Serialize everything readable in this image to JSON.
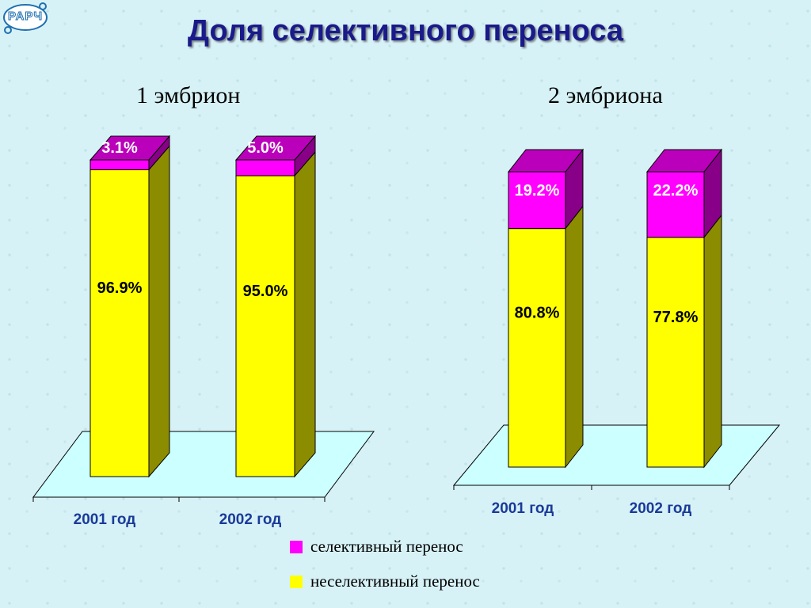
{
  "header": {
    "logo_text": "РАРЧ",
    "title": "Доля селективного переноса"
  },
  "colors": {
    "selective": "#ff00ff",
    "selective_top": "#bb00bb",
    "selective_side": "#880088",
    "nonselective": "#ffff00",
    "nonselective_side": "#8c8c00",
    "floor": "#ccffff",
    "category_text": "#1a3a9a"
  },
  "chart_data": [
    {
      "type": "bar",
      "stacked": true,
      "title": "1 эмбрион",
      "categories": [
        "2001 год",
        "2002 год"
      ],
      "series": [
        {
          "name": "неселективный перенос",
          "values": [
            96.9,
            95.0
          ],
          "labels": [
            "96.9%",
            "95.0%"
          ]
        },
        {
          "name": "селективный перенос",
          "values": [
            3.1,
            5.0
          ],
          "labels": [
            "3.1%",
            "5.0%"
          ]
        }
      ],
      "ylim": [
        0,
        100
      ]
    },
    {
      "type": "bar",
      "stacked": true,
      "title": "2 эмбриона",
      "categories": [
        "2001 год",
        "2002 год"
      ],
      "series": [
        {
          "name": "неселективный перенос",
          "values": [
            80.8,
            77.8
          ],
          "labels": [
            "80.8%",
            "77.8%"
          ]
        },
        {
          "name": "селективный перенос",
          "values": [
            19.2,
            22.2
          ],
          "labels": [
            "19.2%",
            "22.2%"
          ]
        }
      ],
      "ylim": [
        0,
        100
      ]
    }
  ],
  "legend": [
    {
      "label": "селективный перенос",
      "color": "#ff00ff"
    },
    {
      "label": "неселективный перенос",
      "color": "#ffff00"
    }
  ]
}
